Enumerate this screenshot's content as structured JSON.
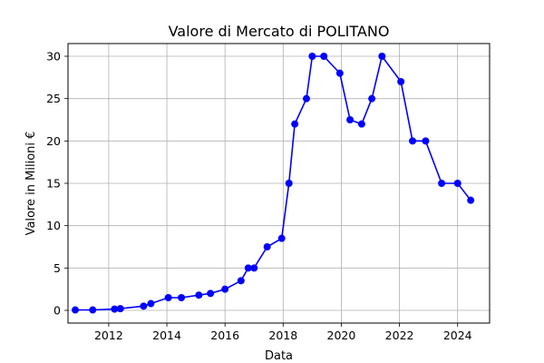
{
  "chart_data": {
    "type": "line",
    "title": "Valore di Mercato di POLITANO",
    "xlabel": "Data",
    "ylabel": "Valore in Milioni €",
    "x_is_year": true,
    "xlim": [
      2010.6,
      2025.1
    ],
    "ylim": [
      -1.5,
      31.5
    ],
    "xticks": [
      2012,
      2014,
      2016,
      2018,
      2020,
      2022,
      2024
    ],
    "yticks": [
      0,
      5,
      10,
      15,
      20,
      25,
      30
    ],
    "grid": true,
    "series": [
      {
        "color": "#0000ff",
        "marker": "circle",
        "x": [
          2010.85,
          2011.45,
          2012.2,
          2012.4,
          2013.2,
          2013.45,
          2014.05,
          2014.5,
          2015.1,
          2015.5,
          2016.0,
          2016.55,
          2016.8,
          2017.0,
          2017.45,
          2017.95,
          2018.2,
          2018.4,
          2018.8,
          2019.0,
          2019.4,
          2019.95,
          2020.3,
          2020.7,
          2021.05,
          2021.4,
          2022.05,
          2022.45,
          2022.9,
          2023.45,
          2024.0,
          2024.45
        ],
        "y": [
          0.05,
          0.05,
          0.15,
          0.2,
          0.5,
          0.8,
          1.5,
          1.5,
          1.8,
          2.0,
          2.5,
          3.5,
          5.0,
          5.0,
          7.5,
          8.5,
          15,
          22,
          25,
          30,
          30,
          28,
          22.5,
          22,
          25,
          30,
          27,
          20,
          20,
          15,
          15,
          13
        ]
      }
    ]
  }
}
